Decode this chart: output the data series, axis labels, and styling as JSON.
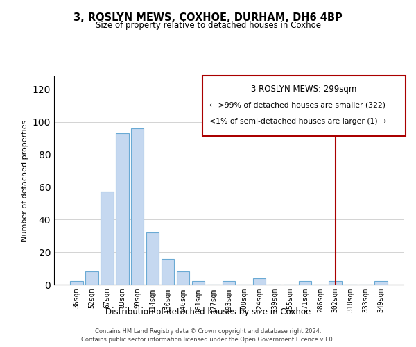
{
  "title": "3, ROSLYN MEWS, COXHOE, DURHAM, DH6 4BP",
  "subtitle": "Size of property relative to detached houses in Coxhoe",
  "xlabel": "Distribution of detached houses by size in Coxhoe",
  "ylabel": "Number of detached properties",
  "bar_labels": [
    "36sqm",
    "52sqm",
    "67sqm",
    "83sqm",
    "99sqm",
    "114sqm",
    "130sqm",
    "146sqm",
    "161sqm",
    "177sqm",
    "193sqm",
    "208sqm",
    "224sqm",
    "239sqm",
    "255sqm",
    "271sqm",
    "286sqm",
    "302sqm",
    "318sqm",
    "333sqm",
    "349sqm"
  ],
  "bar_values": [
    2,
    8,
    57,
    93,
    96,
    32,
    16,
    8,
    2,
    0,
    2,
    0,
    4,
    0,
    0,
    2,
    0,
    2,
    0,
    0,
    2
  ],
  "bar_color": "#c5d8f0",
  "bar_edge_color": "#6aaad4",
  "ylim": [
    0,
    128
  ],
  "yticks": [
    0,
    20,
    40,
    60,
    80,
    100,
    120
  ],
  "vline_x_index": 17,
  "vline_color": "#aa0000",
  "legend_title": "3 ROSLYN MEWS: 299sqm",
  "legend_line1": "← >99% of detached houses are smaller (322)",
  "legend_line2": "<1% of semi-detached houses are larger (1) →",
  "footer1": "Contains HM Land Registry data © Crown copyright and database right 2024.",
  "footer2": "Contains public sector information licensed under the Open Government Licence v3.0."
}
